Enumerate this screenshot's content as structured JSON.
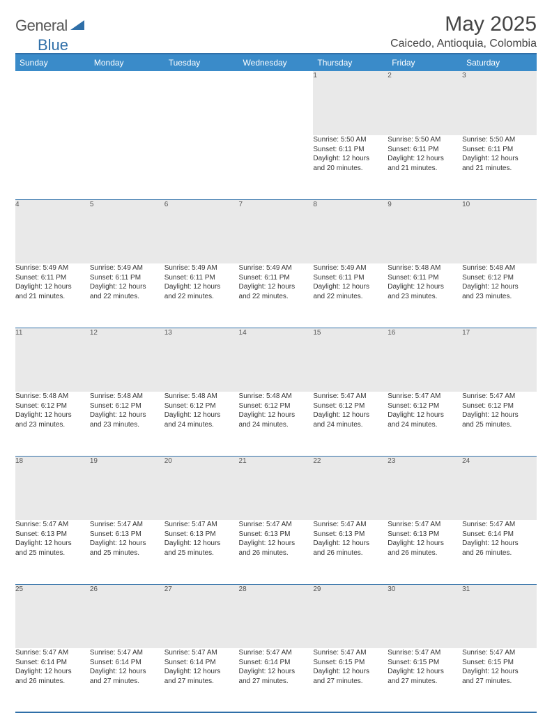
{
  "brand": {
    "part1": "General",
    "part2": "Blue"
  },
  "title": "May 2025",
  "location": "Caicedo, Antioquia, Colombia",
  "colors": {
    "header_bg": "#3a8bc9",
    "rule": "#2f6fa8",
    "daynum_bg": "#e9e9e9",
    "text": "#333333"
  },
  "weekdays": [
    "Sunday",
    "Monday",
    "Tuesday",
    "Wednesday",
    "Thursday",
    "Friday",
    "Saturday"
  ],
  "weeks": [
    [
      null,
      null,
      null,
      null,
      {
        "n": "1",
        "sr": "Sunrise: 5:50 AM",
        "ss": "Sunset: 6:11 PM",
        "d1": "Daylight: 12 hours",
        "d2": "and 20 minutes."
      },
      {
        "n": "2",
        "sr": "Sunrise: 5:50 AM",
        "ss": "Sunset: 6:11 PM",
        "d1": "Daylight: 12 hours",
        "d2": "and 21 minutes."
      },
      {
        "n": "3",
        "sr": "Sunrise: 5:50 AM",
        "ss": "Sunset: 6:11 PM",
        "d1": "Daylight: 12 hours",
        "d2": "and 21 minutes."
      }
    ],
    [
      {
        "n": "4",
        "sr": "Sunrise: 5:49 AM",
        "ss": "Sunset: 6:11 PM",
        "d1": "Daylight: 12 hours",
        "d2": "and 21 minutes."
      },
      {
        "n": "5",
        "sr": "Sunrise: 5:49 AM",
        "ss": "Sunset: 6:11 PM",
        "d1": "Daylight: 12 hours",
        "d2": "and 22 minutes."
      },
      {
        "n": "6",
        "sr": "Sunrise: 5:49 AM",
        "ss": "Sunset: 6:11 PM",
        "d1": "Daylight: 12 hours",
        "d2": "and 22 minutes."
      },
      {
        "n": "7",
        "sr": "Sunrise: 5:49 AM",
        "ss": "Sunset: 6:11 PM",
        "d1": "Daylight: 12 hours",
        "d2": "and 22 minutes."
      },
      {
        "n": "8",
        "sr": "Sunrise: 5:49 AM",
        "ss": "Sunset: 6:11 PM",
        "d1": "Daylight: 12 hours",
        "d2": "and 22 minutes."
      },
      {
        "n": "9",
        "sr": "Sunrise: 5:48 AM",
        "ss": "Sunset: 6:11 PM",
        "d1": "Daylight: 12 hours",
        "d2": "and 23 minutes."
      },
      {
        "n": "10",
        "sr": "Sunrise: 5:48 AM",
        "ss": "Sunset: 6:12 PM",
        "d1": "Daylight: 12 hours",
        "d2": "and 23 minutes."
      }
    ],
    [
      {
        "n": "11",
        "sr": "Sunrise: 5:48 AM",
        "ss": "Sunset: 6:12 PM",
        "d1": "Daylight: 12 hours",
        "d2": "and 23 minutes."
      },
      {
        "n": "12",
        "sr": "Sunrise: 5:48 AM",
        "ss": "Sunset: 6:12 PM",
        "d1": "Daylight: 12 hours",
        "d2": "and 23 minutes."
      },
      {
        "n": "13",
        "sr": "Sunrise: 5:48 AM",
        "ss": "Sunset: 6:12 PM",
        "d1": "Daylight: 12 hours",
        "d2": "and 24 minutes."
      },
      {
        "n": "14",
        "sr": "Sunrise: 5:48 AM",
        "ss": "Sunset: 6:12 PM",
        "d1": "Daylight: 12 hours",
        "d2": "and 24 minutes."
      },
      {
        "n": "15",
        "sr": "Sunrise: 5:47 AM",
        "ss": "Sunset: 6:12 PM",
        "d1": "Daylight: 12 hours",
        "d2": "and 24 minutes."
      },
      {
        "n": "16",
        "sr": "Sunrise: 5:47 AM",
        "ss": "Sunset: 6:12 PM",
        "d1": "Daylight: 12 hours",
        "d2": "and 24 minutes."
      },
      {
        "n": "17",
        "sr": "Sunrise: 5:47 AM",
        "ss": "Sunset: 6:12 PM",
        "d1": "Daylight: 12 hours",
        "d2": "and 25 minutes."
      }
    ],
    [
      {
        "n": "18",
        "sr": "Sunrise: 5:47 AM",
        "ss": "Sunset: 6:13 PM",
        "d1": "Daylight: 12 hours",
        "d2": "and 25 minutes."
      },
      {
        "n": "19",
        "sr": "Sunrise: 5:47 AM",
        "ss": "Sunset: 6:13 PM",
        "d1": "Daylight: 12 hours",
        "d2": "and 25 minutes."
      },
      {
        "n": "20",
        "sr": "Sunrise: 5:47 AM",
        "ss": "Sunset: 6:13 PM",
        "d1": "Daylight: 12 hours",
        "d2": "and 25 minutes."
      },
      {
        "n": "21",
        "sr": "Sunrise: 5:47 AM",
        "ss": "Sunset: 6:13 PM",
        "d1": "Daylight: 12 hours",
        "d2": "and 26 minutes."
      },
      {
        "n": "22",
        "sr": "Sunrise: 5:47 AM",
        "ss": "Sunset: 6:13 PM",
        "d1": "Daylight: 12 hours",
        "d2": "and 26 minutes."
      },
      {
        "n": "23",
        "sr": "Sunrise: 5:47 AM",
        "ss": "Sunset: 6:13 PM",
        "d1": "Daylight: 12 hours",
        "d2": "and 26 minutes."
      },
      {
        "n": "24",
        "sr": "Sunrise: 5:47 AM",
        "ss": "Sunset: 6:14 PM",
        "d1": "Daylight: 12 hours",
        "d2": "and 26 minutes."
      }
    ],
    [
      {
        "n": "25",
        "sr": "Sunrise: 5:47 AM",
        "ss": "Sunset: 6:14 PM",
        "d1": "Daylight: 12 hours",
        "d2": "and 26 minutes."
      },
      {
        "n": "26",
        "sr": "Sunrise: 5:47 AM",
        "ss": "Sunset: 6:14 PM",
        "d1": "Daylight: 12 hours",
        "d2": "and 27 minutes."
      },
      {
        "n": "27",
        "sr": "Sunrise: 5:47 AM",
        "ss": "Sunset: 6:14 PM",
        "d1": "Daylight: 12 hours",
        "d2": "and 27 minutes."
      },
      {
        "n": "28",
        "sr": "Sunrise: 5:47 AM",
        "ss": "Sunset: 6:14 PM",
        "d1": "Daylight: 12 hours",
        "d2": "and 27 minutes."
      },
      {
        "n": "29",
        "sr": "Sunrise: 5:47 AM",
        "ss": "Sunset: 6:15 PM",
        "d1": "Daylight: 12 hours",
        "d2": "and 27 minutes."
      },
      {
        "n": "30",
        "sr": "Sunrise: 5:47 AM",
        "ss": "Sunset: 6:15 PM",
        "d1": "Daylight: 12 hours",
        "d2": "and 27 minutes."
      },
      {
        "n": "31",
        "sr": "Sunrise: 5:47 AM",
        "ss": "Sunset: 6:15 PM",
        "d1": "Daylight: 12 hours",
        "d2": "and 27 minutes."
      }
    ]
  ]
}
